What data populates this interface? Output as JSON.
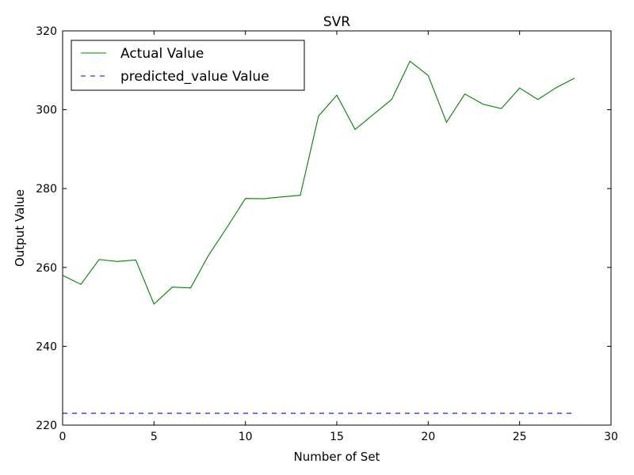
{
  "chart_data": {
    "type": "line",
    "title": "SVR",
    "xlabel": "Number of Set",
    "ylabel": "Output Value",
    "xlim": [
      0,
      30
    ],
    "ylim": [
      220,
      320
    ],
    "xticks": [
      0,
      5,
      10,
      15,
      20,
      25,
      30
    ],
    "yticks": [
      220,
      240,
      260,
      280,
      300,
      320
    ],
    "grid": false,
    "legend_position": "top-left",
    "series": [
      {
        "name": "Actual Value",
        "color": "#008000",
        "style": "solid",
        "x": [
          0,
          1,
          2,
          3,
          4,
          5,
          6,
          7,
          8,
          9,
          10,
          11,
          12,
          13,
          14,
          15,
          16,
          17,
          18,
          19,
          20,
          21,
          22,
          23,
          24,
          25,
          26,
          27,
          28
        ],
        "values": [
          258.0,
          255.7,
          262.0,
          261.5,
          261.9,
          250.7,
          255.0,
          254.8,
          263.2,
          270.2,
          277.5,
          277.4,
          277.9,
          278.3,
          298.4,
          303.7,
          295.0,
          298.8,
          302.6,
          312.3,
          308.7,
          296.8,
          304.0,
          301.4,
          300.3,
          305.5,
          302.6,
          305.6,
          308.0
        ]
      },
      {
        "name": "predicted_value Value",
        "color": "#0000ff",
        "style": "dashed",
        "x": [
          0,
          1,
          2,
          3,
          4,
          5,
          6,
          7,
          8,
          9,
          10,
          11,
          12,
          13,
          14,
          15,
          16,
          17,
          18,
          19,
          20,
          21,
          22,
          23,
          24,
          25,
          26,
          27,
          28
        ],
        "values": [
          223,
          223,
          223,
          223,
          223,
          223,
          223,
          223,
          223,
          223,
          223,
          223,
          223,
          223,
          223,
          223,
          223,
          223,
          223,
          223,
          223,
          223,
          223,
          223,
          223,
          223,
          223,
          223,
          223
        ]
      }
    ]
  }
}
